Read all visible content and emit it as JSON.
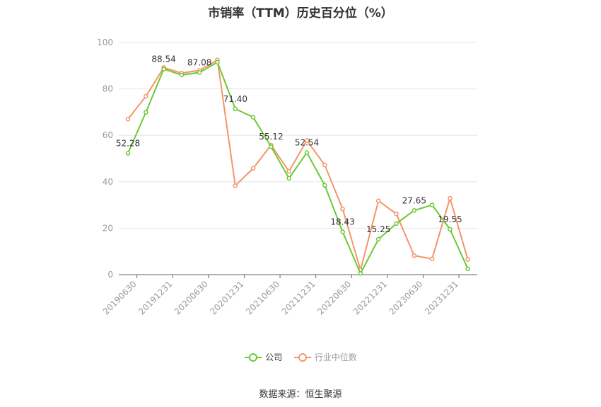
{
  "chart_data": {
    "type": "line",
    "title": "市销率（TTM）历史百分位（%）",
    "ylim": [
      0,
      100
    ],
    "yticks": [
      0,
      20,
      40,
      60,
      80,
      100
    ],
    "x_tick_labels": [
      "20190630",
      "20191231",
      "20200630",
      "20201231",
      "20210630",
      "20211231",
      "20220630",
      "20221231",
      "20230630",
      "20231231"
    ],
    "x_tick_positions": [
      0,
      2,
      4,
      6,
      8,
      10,
      12,
      14,
      16,
      18
    ],
    "grid": true,
    "legend_position": "bottom",
    "series": [
      {
        "name": "公司",
        "color": "#6cc934",
        "values": [
          52.28,
          69.9,
          88.54,
          86.0,
          87.08,
          91.5,
          71.4,
          67.8,
          55.12,
          41.5,
          52.54,
          38.5,
          18.43,
          0.5,
          15.25,
          22.0,
          27.65,
          30.0,
          19.55,
          2.5
        ],
        "labels": {
          "0": "52.28",
          "2": "88.54",
          "4": "87.08",
          "6": "71.40",
          "8": "55.12",
          "10": "52.54",
          "12": "18.43",
          "14": "15.25",
          "16": "27.65",
          "18": "19.55"
        }
      },
      {
        "name": "行业中位数",
        "color": "#f4956a",
        "values": [
          67.0,
          76.8,
          89.2,
          86.8,
          88.0,
          92.5,
          38.3,
          45.8,
          55.8,
          44.5,
          57.8,
          47.2,
          28.3,
          2.0,
          31.8,
          26.2,
          8.2,
          6.8,
          32.9,
          6.5
        ]
      }
    ]
  },
  "source": "数据来源：恒生聚源"
}
